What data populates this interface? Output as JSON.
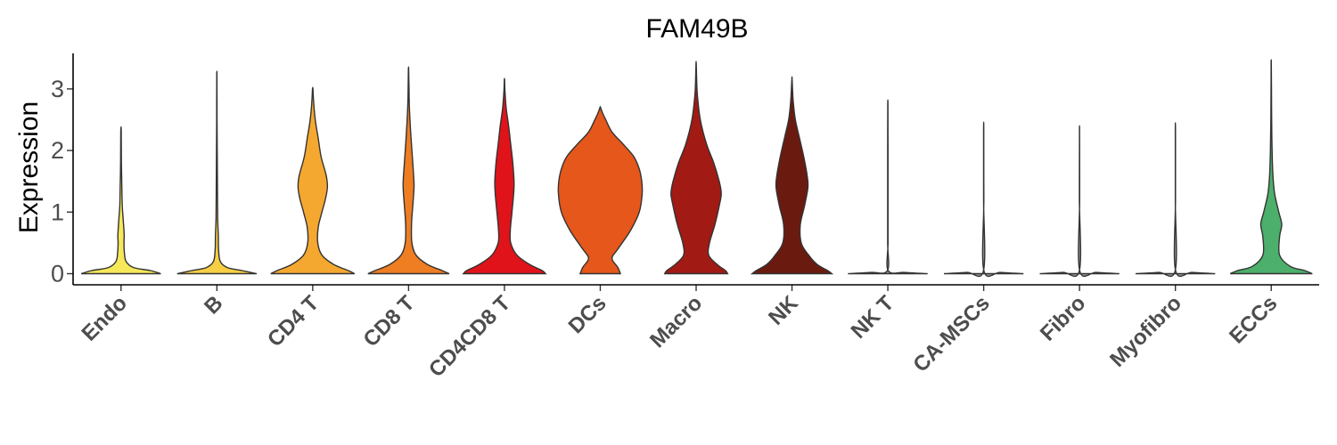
{
  "chart_data": {
    "type": "violin",
    "title": "FAM49B",
    "xlabel": "",
    "ylabel": "Expression",
    "ylim": [
      -0.15,
      3.55
    ],
    "yticks": [
      0,
      1,
      2,
      3
    ],
    "grid": false,
    "legend": "none",
    "categories": [
      "Endo",
      "B",
      "CD4 T",
      "CD8 T",
      "CD4CD8 T",
      "DCs",
      "Macro",
      "NK",
      "NK T",
      "CA-MSCs",
      "Fibro",
      "Myofibro",
      "ECCs"
    ],
    "series": [
      {
        "category": "Endo",
        "color": "#f7e85a",
        "max": 2.32,
        "density": [
          [
            0,
            0.95
          ],
          [
            0.05,
            0.7
          ],
          [
            0.1,
            0.3
          ],
          [
            0.2,
            0.12
          ],
          [
            0.35,
            0.08
          ],
          [
            0.5,
            0.07
          ],
          [
            0.6,
            0.075
          ],
          [
            0.7,
            0.07
          ],
          [
            0.9,
            0.05
          ],
          [
            1.1,
            0.03
          ],
          [
            1.4,
            0.02
          ],
          [
            1.8,
            0.01
          ],
          [
            2.32,
            0.005
          ]
        ]
      },
      {
        "category": "B",
        "color": "#f6cf45",
        "max": 3.2,
        "density": [
          [
            0,
            0.95
          ],
          [
            0.05,
            0.6
          ],
          [
            0.1,
            0.25
          ],
          [
            0.2,
            0.08
          ],
          [
            0.4,
            0.04
          ],
          [
            0.6,
            0.035
          ],
          [
            0.9,
            0.02
          ],
          [
            1.3,
            0.015
          ],
          [
            1.8,
            0.01
          ],
          [
            2.5,
            0.005
          ],
          [
            3.2,
            0.003
          ]
        ]
      },
      {
        "category": "CD4 T",
        "color": "#f5a830",
        "max": 3.0,
        "density": [
          [
            0,
            1.0
          ],
          [
            0.05,
            0.85
          ],
          [
            0.15,
            0.5
          ],
          [
            0.3,
            0.22
          ],
          [
            0.5,
            0.12
          ],
          [
            0.75,
            0.13
          ],
          [
            1.0,
            0.22
          ],
          [
            1.2,
            0.3
          ],
          [
            1.4,
            0.35
          ],
          [
            1.6,
            0.32
          ],
          [
            1.9,
            0.2
          ],
          [
            2.2,
            0.13
          ],
          [
            2.5,
            0.06
          ],
          [
            2.8,
            0.02
          ],
          [
            3.0,
            0.005
          ]
        ]
      },
      {
        "category": "CD8 T",
        "color": "#ef7d22",
        "max": 3.32,
        "density": [
          [
            0,
            0.97
          ],
          [
            0.05,
            0.8
          ],
          [
            0.15,
            0.45
          ],
          [
            0.3,
            0.18
          ],
          [
            0.5,
            0.08
          ],
          [
            0.8,
            0.07
          ],
          [
            1.1,
            0.1
          ],
          [
            1.4,
            0.13
          ],
          [
            1.6,
            0.12
          ],
          [
            1.9,
            0.09
          ],
          [
            2.3,
            0.05
          ],
          [
            2.7,
            0.02
          ],
          [
            3.0,
            0.01
          ],
          [
            3.32,
            0.003
          ]
        ]
      },
      {
        "category": "CD4CD8 T",
        "color": "#e0131a",
        "max": 3.15,
        "density": [
          [
            0,
            0.98
          ],
          [
            0.05,
            0.9
          ],
          [
            0.15,
            0.6
          ],
          [
            0.3,
            0.3
          ],
          [
            0.5,
            0.15
          ],
          [
            0.7,
            0.14
          ],
          [
            1.0,
            0.18
          ],
          [
            1.3,
            0.22
          ],
          [
            1.5,
            0.23
          ],
          [
            1.8,
            0.2
          ],
          [
            2.1,
            0.15
          ],
          [
            2.4,
            0.1
          ],
          [
            2.7,
            0.04
          ],
          [
            3.0,
            0.01
          ],
          [
            3.15,
            0.003
          ]
        ]
      },
      {
        "category": "DCs",
        "color": "#e5571b",
        "max": 2.7,
        "density": [
          [
            0,
            0.48
          ],
          [
            0.1,
            0.42
          ],
          [
            0.25,
            0.28
          ],
          [
            0.4,
            0.42
          ],
          [
            0.7,
            0.72
          ],
          [
            1.0,
            0.93
          ],
          [
            1.3,
            1.0
          ],
          [
            1.5,
            0.99
          ],
          [
            1.7,
            0.93
          ],
          [
            1.9,
            0.8
          ],
          [
            2.1,
            0.55
          ],
          [
            2.3,
            0.28
          ],
          [
            2.5,
            0.13
          ],
          [
            2.6,
            0.06
          ],
          [
            2.7,
            0.005
          ]
        ]
      },
      {
        "category": "Macro",
        "color": "#a21a14",
        "max": 3.42,
        "density": [
          [
            0,
            0.75
          ],
          [
            0.05,
            0.7
          ],
          [
            0.15,
            0.5
          ],
          [
            0.3,
            0.3
          ],
          [
            0.5,
            0.32
          ],
          [
            0.8,
            0.45
          ],
          [
            1.1,
            0.55
          ],
          [
            1.3,
            0.6
          ],
          [
            1.5,
            0.55
          ],
          [
            1.8,
            0.42
          ],
          [
            2.1,
            0.25
          ],
          [
            2.5,
            0.1
          ],
          [
            2.9,
            0.03
          ],
          [
            3.2,
            0.01
          ],
          [
            3.42,
            0.003
          ]
        ]
      },
      {
        "category": "NK",
        "color": "#6b1a10",
        "max": 3.15,
        "density": [
          [
            0,
            0.95
          ],
          [
            0.05,
            0.85
          ],
          [
            0.15,
            0.6
          ],
          [
            0.3,
            0.4
          ],
          [
            0.5,
            0.22
          ],
          [
            0.8,
            0.2
          ],
          [
            1.1,
            0.3
          ],
          [
            1.4,
            0.38
          ],
          [
            1.6,
            0.36
          ],
          [
            1.9,
            0.28
          ],
          [
            2.2,
            0.18
          ],
          [
            2.5,
            0.08
          ],
          [
            2.8,
            0.03
          ],
          [
            3.15,
            0.003
          ]
        ]
      },
      {
        "category": "NK T",
        "color": "#9a9a9a",
        "max": 2.73,
        "density": [
          [
            0,
            0.95
          ],
          [
            0.02,
            0.4
          ],
          [
            0.05,
            0.01
          ],
          [
            0.5,
            0.004
          ],
          [
            1.2,
            0.004
          ],
          [
            2.0,
            0.004
          ],
          [
            2.73,
            0.002
          ]
        ]
      },
      {
        "category": "CA-MSCs",
        "color": "#9a9a9a",
        "max": 2.32,
        "density": [
          [
            0,
            0.95
          ],
          [
            0.02,
            0.4
          ],
          [
            0.05,
            0.004
          ],
          [
            1.2,
            0.003
          ],
          [
            2.32,
            0.002
          ]
        ]
      },
      {
        "category": "Fibro",
        "color": "#9a9a9a",
        "max": 2.27,
        "density": [
          [
            0,
            0.95
          ],
          [
            0.02,
            0.4
          ],
          [
            0.05,
            0.004
          ],
          [
            1.2,
            0.003
          ],
          [
            2.27,
            0.002
          ]
        ]
      },
      {
        "category": "Myofibro",
        "color": "#9a9a9a",
        "max": 2.31,
        "density": [
          [
            0,
            0.95
          ],
          [
            0.02,
            0.4
          ],
          [
            0.05,
            0.004
          ],
          [
            1.2,
            0.003
          ],
          [
            2.31,
            0.002
          ]
        ]
      },
      {
        "category": "ECCs",
        "color": "#4caf6b",
        "max": 3.42,
        "density": [
          [
            0,
            0.98
          ],
          [
            0.05,
            0.8
          ],
          [
            0.12,
            0.45
          ],
          [
            0.3,
            0.2
          ],
          [
            0.6,
            0.2
          ],
          [
            0.8,
            0.25
          ],
          [
            1.0,
            0.18
          ],
          [
            1.3,
            0.08
          ],
          [
            1.6,
            0.04
          ],
          [
            2.0,
            0.02
          ],
          [
            2.5,
            0.01
          ],
          [
            3.0,
            0.005
          ],
          [
            3.42,
            0.002
          ]
        ]
      }
    ]
  }
}
